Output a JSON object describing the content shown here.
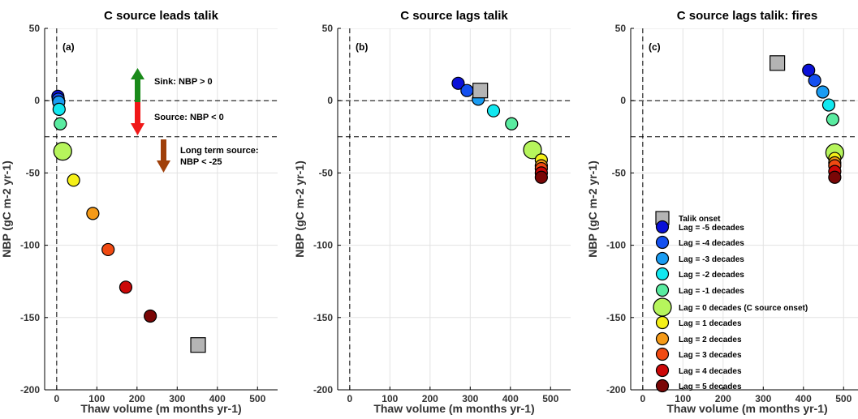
{
  "chart_data": [
    {
      "type": "scatter",
      "title": "C source leads talik",
      "panel_label": "(a)",
      "xlabel": "Thaw volume (m months yr-1)",
      "ylabel": "NBP (gC m-2 yr-1)",
      "xlim": [
        -30,
        550
      ],
      "ylim": [
        -200,
        50
      ],
      "xticks": [
        0,
        100,
        200,
        300,
        400,
        500
      ],
      "yticks": [
        -200,
        -150,
        -100,
        -50,
        0,
        50
      ],
      "grid": true,
      "hlines": [
        0,
        -25
      ],
      "vlines": [
        0
      ],
      "talik_onset": {
        "x": 352,
        "y": -169
      },
      "points": [
        {
          "lag": -5,
          "x": 3,
          "y": 3
        },
        {
          "lag": -4,
          "x": 4,
          "y": 1
        },
        {
          "lag": -3,
          "x": 5,
          "y": -1
        },
        {
          "lag": -2,
          "x": 6,
          "y": -6
        },
        {
          "lag": -1,
          "x": 9,
          "y": -16
        },
        {
          "lag": 0,
          "x": 15,
          "y": -35
        },
        {
          "lag": 1,
          "x": 42,
          "y": -55
        },
        {
          "lag": 2,
          "x": 90,
          "y": -78
        },
        {
          "lag": 3,
          "x": 128,
          "y": -103
        },
        {
          "lag": 4,
          "x": 172,
          "y": -129
        },
        {
          "lag": 5,
          "x": 233,
          "y": -149
        }
      ],
      "annotations": [
        {
          "text": "Sink: NBP > 0"
        },
        {
          "text": "Source: NBP < 0"
        },
        {
          "text": "Long term source:"
        },
        {
          "text": "NBP < -25"
        }
      ]
    },
    {
      "type": "scatter",
      "title": "C source lags talik",
      "panel_label": "(b)",
      "xlabel": "Thaw volume (m months yr-1)",
      "ylabel": "NBP (gC m-2 yr-1)",
      "xlim": [
        -30,
        550
      ],
      "ylim": [
        -200,
        50
      ],
      "xticks": [
        0,
        100,
        200,
        300,
        400,
        500
      ],
      "yticks": [
        -200,
        -150,
        -100,
        -50,
        0,
        50
      ],
      "grid": true,
      "hlines": [
        0,
        -25
      ],
      "vlines": [
        0
      ],
      "talik_onset": {
        "x": 325,
        "y": 7
      },
      "points": [
        {
          "lag": -5,
          "x": 270,
          "y": 12
        },
        {
          "lag": -4,
          "x": 292,
          "y": 7
        },
        {
          "lag": -3,
          "x": 320,
          "y": 1
        },
        {
          "lag": -2,
          "x": 358,
          "y": -7
        },
        {
          "lag": -1,
          "x": 403,
          "y": -16
        },
        {
          "lag": 0,
          "x": 455,
          "y": -34
        },
        {
          "lag": 1,
          "x": 477,
          "y": -41
        },
        {
          "lag": 2,
          "x": 477,
          "y": -45
        },
        {
          "lag": 3,
          "x": 477,
          "y": -47
        },
        {
          "lag": 4,
          "x": 477,
          "y": -50
        },
        {
          "lag": 5,
          "x": 477,
          "y": -53
        }
      ],
      "annotations": []
    },
    {
      "type": "scatter",
      "title": "C source lags talik: fires",
      "panel_label": "(c)",
      "xlabel": "Thaw volume (m months yr-1)",
      "ylabel": "NBP (gC m-2 yr-1)",
      "xlim": [
        -30,
        550
      ],
      "ylim": [
        -200,
        50
      ],
      "xticks": [
        0,
        100,
        200,
        300,
        400,
        500
      ],
      "yticks": [
        -200,
        -150,
        -100,
        -50,
        0,
        50
      ],
      "grid": true,
      "hlines": [
        0,
        -25
      ],
      "vlines": [
        0
      ],
      "talik_onset": {
        "x": 335,
        "y": 26
      },
      "points": [
        {
          "lag": -5,
          "x": 413,
          "y": 21
        },
        {
          "lag": -4,
          "x": 428,
          "y": 14
        },
        {
          "lag": -3,
          "x": 448,
          "y": 6
        },
        {
          "lag": -2,
          "x": 463,
          "y": -3
        },
        {
          "lag": -1,
          "x": 473,
          "y": -13
        },
        {
          "lag": 0,
          "x": 478,
          "y": -36
        },
        {
          "lag": 1,
          "x": 478,
          "y": -40
        },
        {
          "lag": 2,
          "x": 478,
          "y": -43
        },
        {
          "lag": 3,
          "x": 478,
          "y": -45
        },
        {
          "lag": 4,
          "x": 478,
          "y": -49
        },
        {
          "lag": 5,
          "x": 478,
          "y": -53
        }
      ],
      "annotations": []
    }
  ],
  "legend": {
    "placement": "lower-left of panel (c)",
    "talik_label": "Talik onset",
    "items": [
      {
        "lag": -5,
        "label": "Lag = -5 decades",
        "color": "#0a10d8"
      },
      {
        "lag": -4,
        "label": "Lag = -4 decades",
        "color": "#1450f0"
      },
      {
        "lag": -3,
        "label": "Lag = -3 decades",
        "color": "#1a9cf2"
      },
      {
        "lag": -2,
        "label": "Lag = -2 decades",
        "color": "#12e8f0"
      },
      {
        "lag": -1,
        "label": "Lag = -1 decades",
        "color": "#5aeba0"
      },
      {
        "lag": 0,
        "label": "Lag = 0 decades (C source onset)",
        "color": "#b6f55c"
      },
      {
        "lag": 1,
        "label": "Lag = 1 decades",
        "color": "#f5f018"
      },
      {
        "lag": 2,
        "label": "Lag = 2 decades",
        "color": "#f59a18"
      },
      {
        "lag": 3,
        "label": "Lag = 3 decades",
        "color": "#f04a12"
      },
      {
        "lag": 4,
        "label": "Lag = 4 decades",
        "color": "#cc0808"
      },
      {
        "lag": 5,
        "label": "Lag = 5 decades",
        "color": "#7a0606"
      }
    ]
  },
  "colors": {
    "talik": "#b4b4b4",
    "sink_arrow": "#1a8a1a",
    "source_arrow": "#f01818",
    "longterm_arrow": "#a0400a"
  }
}
